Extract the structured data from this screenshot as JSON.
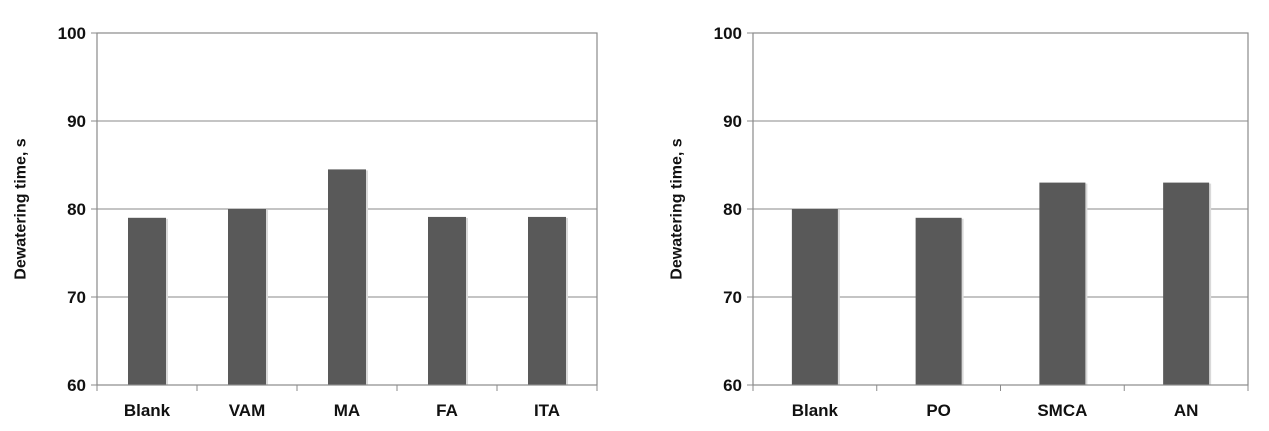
{
  "chart_data": [
    {
      "type": "bar",
      "categories": [
        "Blank",
        "VAM",
        "MA",
        "FA",
        "ITA"
      ],
      "values": [
        79,
        80,
        84.5,
        79.1,
        79.1
      ],
      "title": "",
      "xlabel": "",
      "ylabel": "Dewatering time, s",
      "ylim": [
        60,
        100
      ],
      "yticks": [
        "60",
        "70",
        "80",
        "90",
        "100"
      ],
      "grid": true,
      "legend": "none",
      "bar_color": "#595959"
    },
    {
      "type": "bar",
      "categories": [
        "Blank",
        "PO",
        "SMCA",
        "AN"
      ],
      "values": [
        80,
        79,
        83,
        83
      ],
      "title": "",
      "xlabel": "",
      "ylabel": "Dewatering time, s",
      "ylim": [
        60,
        100
      ],
      "yticks": [
        "60",
        "70",
        "80",
        "90",
        "100"
      ],
      "grid": true,
      "legend": "none",
      "bar_color": "#595959"
    }
  ]
}
